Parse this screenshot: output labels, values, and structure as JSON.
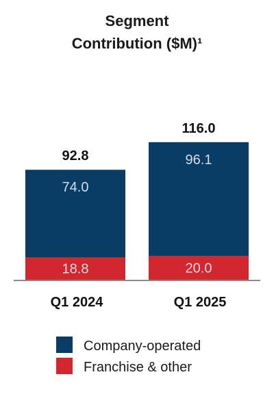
{
  "chart_data": {
    "type": "bar",
    "stacked": true,
    "title": "Segment Contribution ($M)¹",
    "title_lines": [
      "Segment",
      "Contribution ($M)¹"
    ],
    "categories": [
      "Q1 2024",
      "Q1 2025"
    ],
    "series": [
      {
        "name": "Franchise & other",
        "values": [
          18.8,
          20.0
        ],
        "color": "#d3272f",
        "labels": [
          "18.8",
          "20.0"
        ]
      },
      {
        "name": "Company-operated",
        "values": [
          74.0,
          96.1
        ],
        "color": "#0a3d66",
        "labels": [
          "74.0",
          "96.1"
        ]
      }
    ],
    "totals": [
      92.8,
      116.0
    ],
    "total_labels": [
      "92.8",
      "116.0"
    ],
    "legend_order": [
      "Company-operated",
      "Franchise & other"
    ],
    "legend_position": "bottom-center",
    "ylim": [
      0,
      116.0
    ],
    "grid": false
  }
}
